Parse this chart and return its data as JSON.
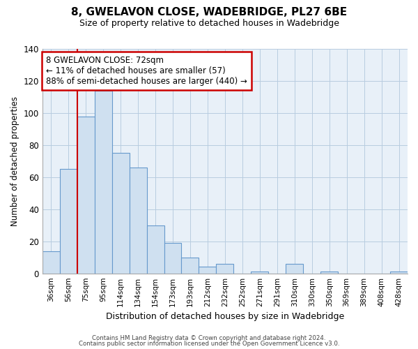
{
  "title": "8, GWELAVON CLOSE, WADEBRIDGE, PL27 6BE",
  "subtitle": "Size of property relative to detached houses in Wadebridge",
  "xlabel": "Distribution of detached houses by size in Wadebridge",
  "ylabel": "Number of detached properties",
  "bar_labels": [
    "36sqm",
    "56sqm",
    "75sqm",
    "95sqm",
    "114sqm",
    "134sqm",
    "154sqm",
    "173sqm",
    "193sqm",
    "212sqm",
    "232sqm",
    "252sqm",
    "271sqm",
    "291sqm",
    "310sqm",
    "330sqm",
    "350sqm",
    "369sqm",
    "389sqm",
    "408sqm",
    "428sqm"
  ],
  "bar_heights": [
    14,
    65,
    98,
    114,
    75,
    66,
    30,
    19,
    10,
    4,
    6,
    0,
    1,
    0,
    6,
    0,
    1,
    0,
    0,
    0,
    1
  ],
  "bar_color": "#cfe0f0",
  "bar_edge_color": "#6699cc",
  "vline_x_idx": 2,
  "vline_color": "#cc0000",
  "ylim": [
    0,
    140
  ],
  "yticks": [
    0,
    20,
    40,
    60,
    80,
    100,
    120,
    140
  ],
  "annotation_text": "8 GWELAVON CLOSE: 72sqm\n← 11% of detached houses are smaller (57)\n88% of semi-detached houses are larger (440) →",
  "annotation_box_color": "#ffffff",
  "annotation_box_edge_color": "#cc0000",
  "footer1": "Contains HM Land Registry data © Crown copyright and database right 2024.",
  "footer2": "Contains public sector information licensed under the Open Government Licence v3.0.",
  "bg_color": "#ffffff",
  "plot_bg_color": "#e8f0f8",
  "grid_color": "#b8cce0"
}
